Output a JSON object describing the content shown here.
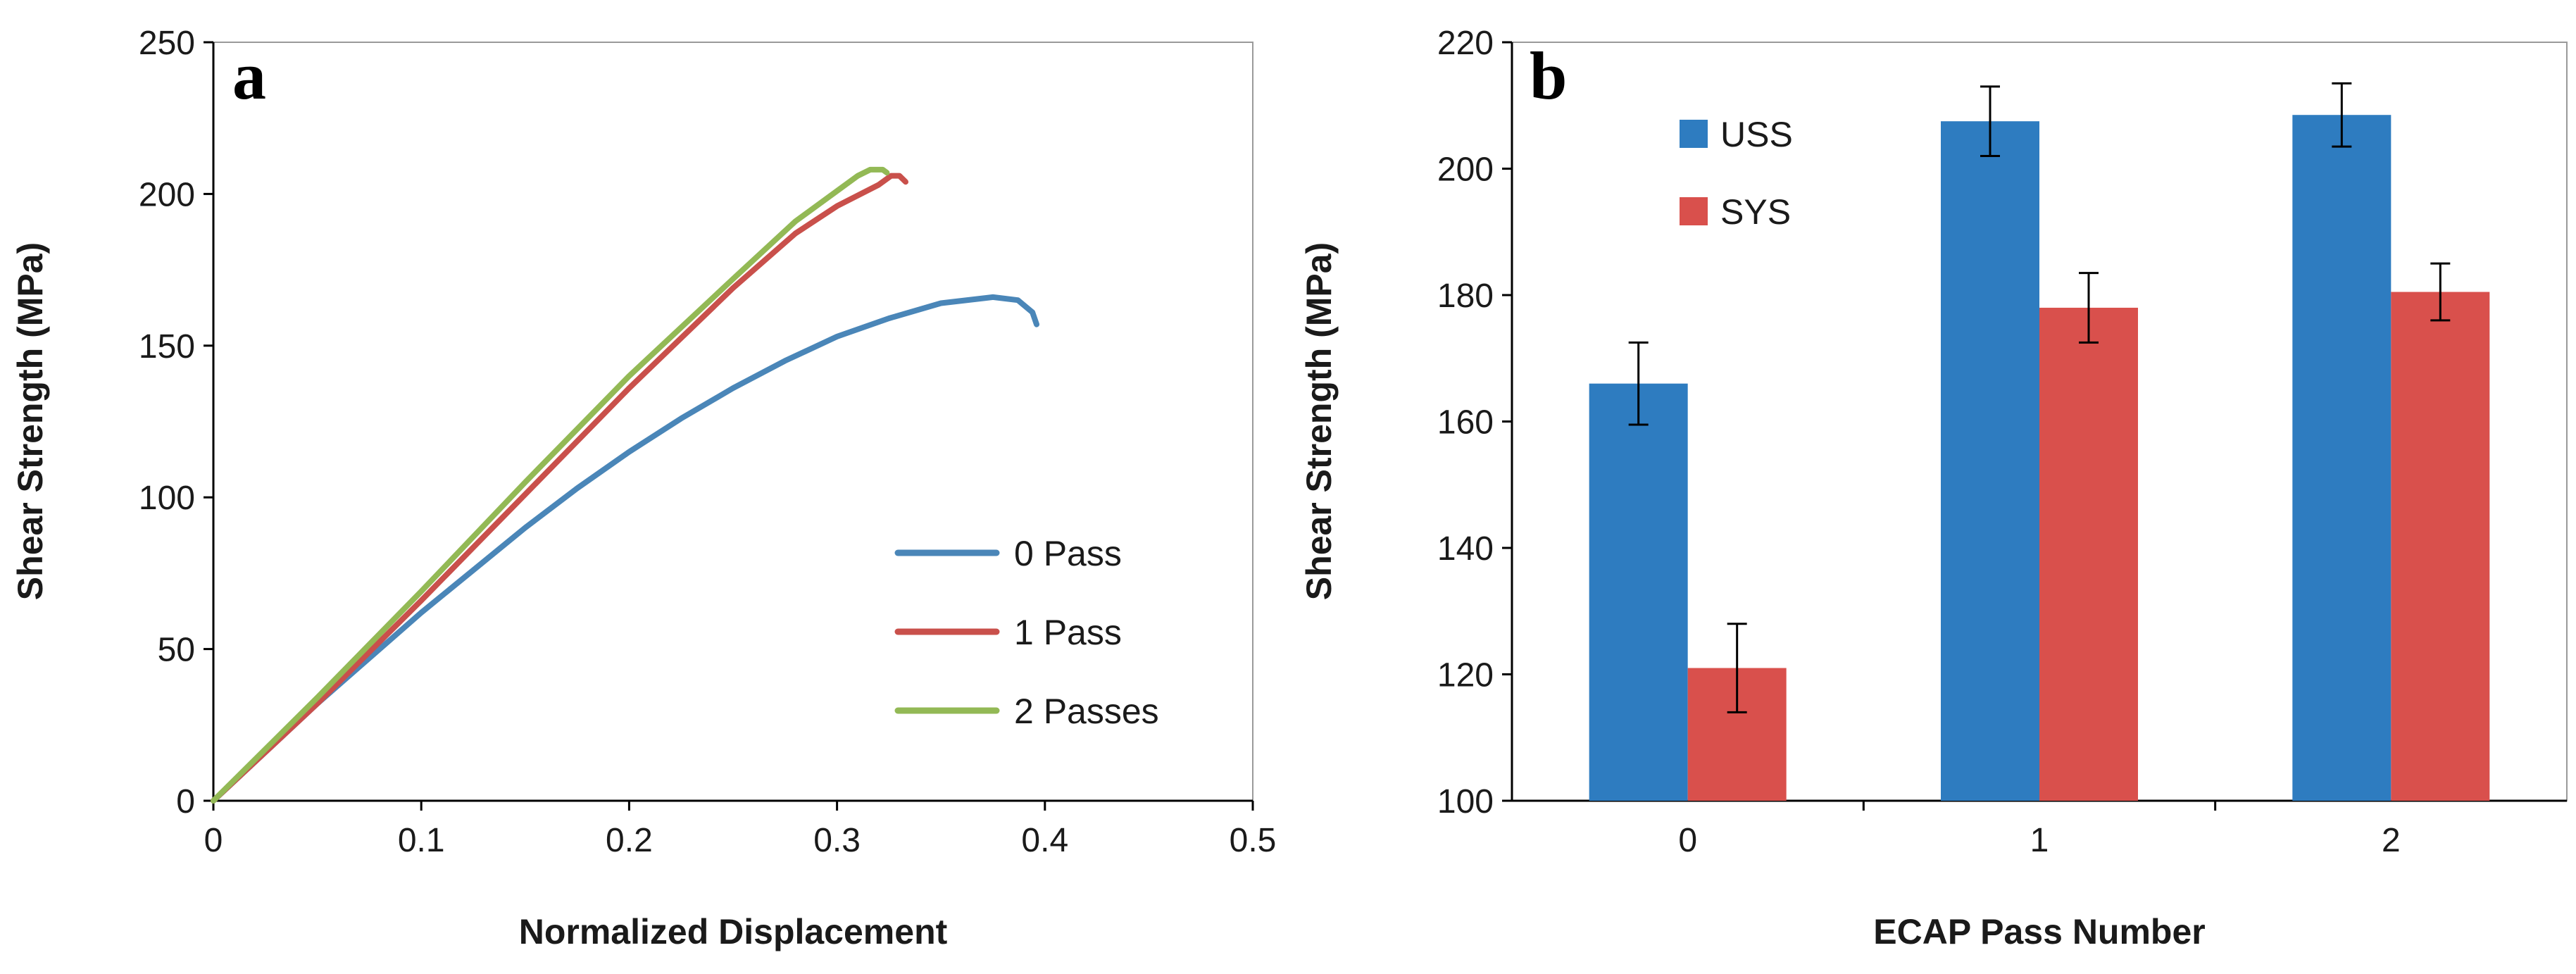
{
  "chart_data": [
    {
      "type": "line",
      "panel_label": "a",
      "xlabel": "Normalized Displacement",
      "ylabel": "Shear Strength (MPa)",
      "xlim": [
        0,
        0.5
      ],
      "ylim": [
        0,
        250
      ],
      "x_ticks": [
        "0",
        "0.1",
        "0.2",
        "0.3",
        "0.4",
        "0.5"
      ],
      "y_ticks": [
        "0",
        "50",
        "100",
        "150",
        "200",
        "250"
      ],
      "legend_position": "bottom-right",
      "series": [
        {
          "name": "0 Pass",
          "color": "#4a86b8",
          "points": [
            [
              0,
              0
            ],
            [
              0.025,
              16
            ],
            [
              0.05,
              32
            ],
            [
              0.075,
              47
            ],
            [
              0.1,
              62
            ],
            [
              0.125,
              76
            ],
            [
              0.15,
              90
            ],
            [
              0.175,
              103
            ],
            [
              0.2,
              115
            ],
            [
              0.225,
              126
            ],
            [
              0.25,
              136
            ],
            [
              0.275,
              145
            ],
            [
              0.3,
              153
            ],
            [
              0.325,
              159
            ],
            [
              0.35,
              164
            ],
            [
              0.375,
              166
            ],
            [
              0.387,
              165
            ],
            [
              0.394,
              161
            ],
            [
              0.396,
              157
            ]
          ]
        },
        {
          "name": "1 Pass",
          "color": "#c9504b",
          "points": [
            [
              0,
              0
            ],
            [
              0.05,
              32
            ],
            [
              0.1,
              66
            ],
            [
              0.15,
              101
            ],
            [
              0.2,
              136
            ],
            [
              0.25,
              169
            ],
            [
              0.28,
              187
            ],
            [
              0.3,
              196
            ],
            [
              0.32,
              203
            ],
            [
              0.326,
              206
            ],
            [
              0.33,
              206
            ],
            [
              0.333,
              204
            ]
          ]
        },
        {
          "name": "2 Passes",
          "color": "#93b955",
          "points": [
            [
              0,
              0
            ],
            [
              0.05,
              34
            ],
            [
              0.1,
              69
            ],
            [
              0.15,
              105
            ],
            [
              0.2,
              140
            ],
            [
              0.25,
              172
            ],
            [
              0.28,
              191
            ],
            [
              0.3,
              201
            ],
            [
              0.31,
              206
            ],
            [
              0.316,
              208
            ],
            [
              0.322,
              208
            ],
            [
              0.324,
              207
            ]
          ]
        }
      ]
    },
    {
      "type": "bar",
      "panel_label": "b",
      "xlabel": "ECAP Pass Number",
      "ylabel": "Shear Strength (MPa)",
      "categories": [
        "0",
        "1",
        "2"
      ],
      "ylim": [
        100,
        220
      ],
      "y_ticks": [
        "100",
        "120",
        "140",
        "160",
        "180",
        "200",
        "220"
      ],
      "legend_position": "top-left",
      "series": [
        {
          "name": "USS",
          "color": "#2e7cc0",
          "values": [
            166,
            207.5,
            208.5
          ],
          "errors": [
            6.5,
            5.5,
            5
          ]
        },
        {
          "name": "SYS",
          "color": "#d9504c",
          "values": [
            121,
            178,
            180.5
          ],
          "errors": [
            7,
            5.5,
            4.5
          ]
        }
      ]
    }
  ]
}
